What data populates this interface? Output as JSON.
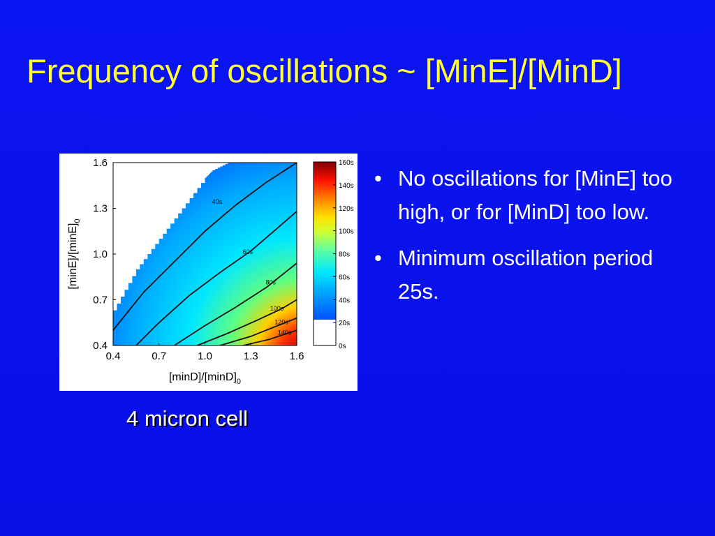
{
  "slide": {
    "title": "Frequency of oscillations  ~ [MinE]/[MinD]",
    "caption": "4 micron cell",
    "bullets": [
      {
        "marker": "•",
        "text": "No oscillations for [MinE] too high, or for [MinD] too low."
      },
      {
        "marker": "•",
        "text": "Minimum oscillation period 25s."
      }
    ]
  },
  "chart_data": {
    "type": "heatmap",
    "title": "",
    "xlabel": "[minD]/[minD]",
    "xlabel_subscript": "0",
    "ylabel": "[minE]/[minE]",
    "ylabel_subscript": "0",
    "xlim": [
      0.4,
      1.6
    ],
    "ylim": [
      0.4,
      1.6
    ],
    "x_ticks": [
      "0.4",
      "0.7",
      "1.0",
      "1.3",
      "1.6"
    ],
    "y_ticks": [
      "0.4",
      "0.7",
      "1.0",
      "1.3",
      "1.6"
    ],
    "grid": false,
    "no_oscillation_region": {
      "boundary": [
        [
          0.4,
          0.63
        ],
        [
          0.55,
          0.9
        ],
        [
          0.7,
          1.1
        ],
        [
          0.85,
          1.3
        ],
        [
          1.0,
          1.5
        ],
        [
          1.05,
          1.55
        ],
        [
          1.15,
          1.6
        ]
      ]
    },
    "contours": [
      {
        "label": "40s",
        "value": 40,
        "label_at": [
          1.08,
          1.33
        ],
        "points": [
          [
            0.4,
            0.5
          ],
          [
            0.6,
            0.75
          ],
          [
            0.8,
            0.95
          ],
          [
            1.0,
            1.15
          ],
          [
            1.2,
            1.32
          ],
          [
            1.4,
            1.47
          ],
          [
            1.6,
            1.6
          ]
        ]
      },
      {
        "label": "60s",
        "value": 60,
        "label_at": [
          1.28,
          1.0
        ],
        "points": [
          [
            0.55,
            0.4
          ],
          [
            0.7,
            0.55
          ],
          [
            0.9,
            0.73
          ],
          [
            1.1,
            0.88
          ],
          [
            1.3,
            1.02
          ],
          [
            1.45,
            1.15
          ],
          [
            1.6,
            1.28
          ]
        ]
      },
      {
        "label": "80s",
        "value": 80,
        "label_at": [
          1.43,
          0.8
        ],
        "points": [
          [
            0.8,
            0.4
          ],
          [
            1.0,
            0.53
          ],
          [
            1.2,
            0.65
          ],
          [
            1.4,
            0.78
          ],
          [
            1.6,
            0.94
          ]
        ]
      },
      {
        "label": "100s",
        "value": 100,
        "label_at": [
          1.47,
          0.63
        ],
        "points": [
          [
            0.95,
            0.4
          ],
          [
            1.15,
            0.48
          ],
          [
            1.35,
            0.57
          ],
          [
            1.5,
            0.64
          ],
          [
            1.6,
            0.7
          ]
        ]
      },
      {
        "label": "120s",
        "value": 120,
        "label_at": [
          1.5,
          0.54
        ],
        "points": [
          [
            1.1,
            0.4
          ],
          [
            1.3,
            0.46
          ],
          [
            1.45,
            0.52
          ],
          [
            1.6,
            0.58
          ]
        ]
      },
      {
        "label": "140s",
        "value": 140,
        "label_at": [
          1.52,
          0.47
        ],
        "points": [
          [
            1.25,
            0.4
          ],
          [
            1.42,
            0.44
          ],
          [
            1.6,
            0.5
          ]
        ]
      }
    ],
    "colorbar": {
      "range": [
        0,
        160
      ],
      "ticks": [
        "160s",
        "140s",
        "120s",
        "100s",
        "80s",
        "60s",
        "40s",
        "20s",
        "0s"
      ],
      "colors": [
        "#ffffff",
        "#ffffff",
        "#0040ff",
        "#00a0ff",
        "#00e5ff",
        "#40ffb0",
        "#c0ff40",
        "#ffe000",
        "#ff8000",
        "#ff2000",
        "#b00000",
        "#800000"
      ]
    },
    "colors": {
      "period_low": "#0050ff",
      "period_mid": "#00eaff",
      "period_high_1": "#ffd000",
      "period_high_2": "#d00000",
      "contour": "#111111"
    }
  }
}
